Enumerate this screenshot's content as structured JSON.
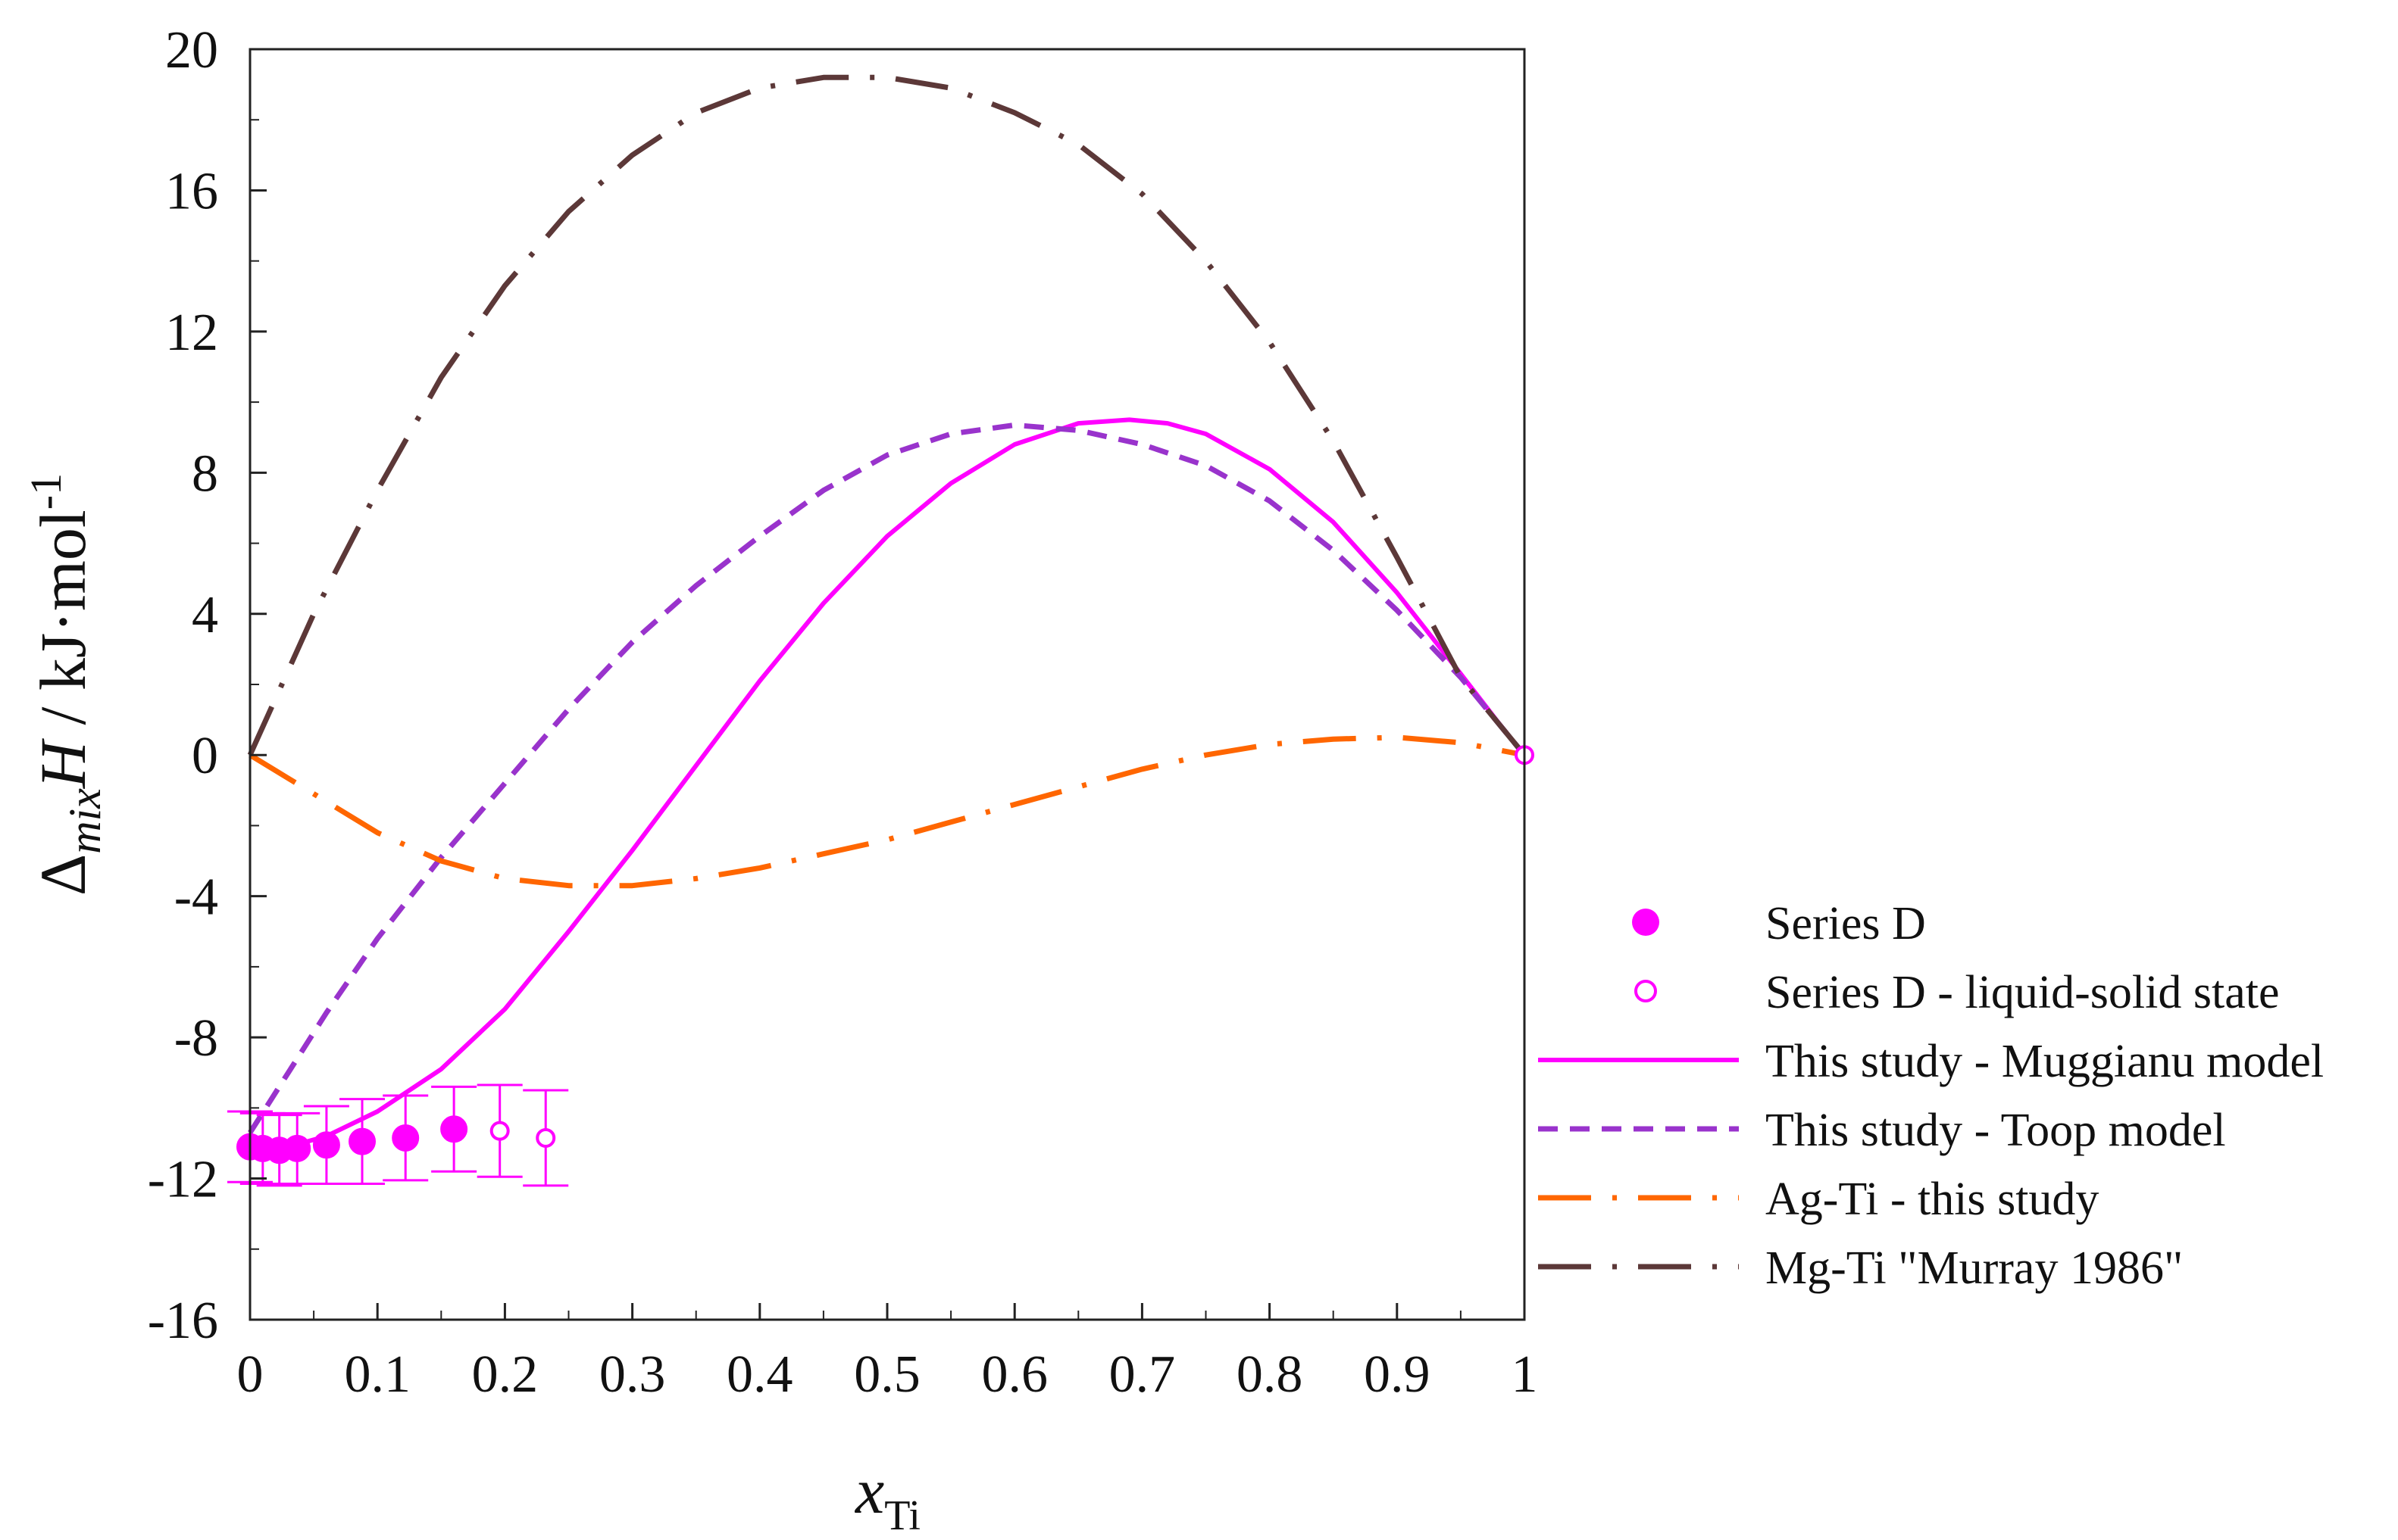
{
  "chart_data": {
    "type": "line",
    "title": "",
    "xlabel_main": "x",
    "xlabel_sub": "Ti",
    "ylabel": "ΔmixH / kJ·mol-1",
    "ylabel_parts": {
      "delta": "Δ",
      "sub": "mix",
      "var": "H",
      "unit": " / kJ·mol",
      "sup": "-1"
    },
    "xlim": [
      0,
      1
    ],
    "ylim": [
      -16,
      20
    ],
    "xticks": [
      0,
      0.1,
      0.2,
      0.3,
      0.4,
      0.5,
      0.6,
      0.7,
      0.8,
      0.9,
      1
    ],
    "xtick_labels": [
      "0",
      "0.1",
      "0.2",
      "0.3",
      "0.4",
      "0.5",
      "0.6",
      "0.7",
      "0.8",
      "0.9",
      "1"
    ],
    "yticks": [
      -16,
      -12,
      -8,
      -4,
      0,
      4,
      8,
      12,
      16,
      20
    ],
    "ytick_labels": [
      "-16",
      "-12",
      "-8",
      "-4",
      "0",
      "4",
      "8",
      "12",
      "16",
      "20"
    ],
    "grid": false,
    "legend_position": "right-bottom outside",
    "series": [
      {
        "name": "Series D",
        "kind": "scatter-filled",
        "color": "#ff00ff",
        "x": [
          0.0,
          0.01,
          0.023,
          0.037,
          0.06,
          0.088,
          0.122,
          0.16
        ],
        "y": [
          -11.1,
          -11.15,
          -11.2,
          -11.15,
          -11.05,
          -10.95,
          -10.85,
          -10.6
        ],
        "err": [
          1.0,
          1.0,
          1.0,
          1.0,
          1.1,
          1.2,
          1.2,
          1.2
        ]
      },
      {
        "name": "Series D - liquid-solid state",
        "kind": "scatter-open",
        "color": "#ff00ff",
        "x": [
          0.196,
          0.232,
          1.0
        ],
        "y": [
          -10.65,
          -10.85,
          0.0
        ],
        "err": [
          1.3,
          1.35,
          0
        ]
      },
      {
        "name": "This study - Muggianu model",
        "kind": "line-solid",
        "color": "#ff00ff",
        "x": [
          0,
          0.03,
          0.06,
          0.1,
          0.15,
          0.2,
          0.25,
          0.3,
          0.35,
          0.4,
          0.45,
          0.5,
          0.55,
          0.6,
          0.65,
          0.69,
          0.72,
          0.75,
          0.8,
          0.85,
          0.9,
          0.95,
          0.98,
          1.0
        ],
        "y": [
          -11.0,
          -11.1,
          -10.8,
          -10.1,
          -8.9,
          -7.2,
          -5.0,
          -2.7,
          -0.3,
          2.1,
          4.3,
          6.2,
          7.7,
          8.8,
          9.4,
          9.5,
          9.4,
          9.1,
          8.1,
          6.6,
          4.6,
          2.3,
          0.9,
          0.0
        ]
      },
      {
        "name": "This study - Toop model",
        "kind": "line-dashed",
        "color": "#9933cc",
        "x": [
          0,
          0.03,
          0.06,
          0.1,
          0.15,
          0.2,
          0.25,
          0.3,
          0.35,
          0.4,
          0.45,
          0.5,
          0.55,
          0.6,
          0.65,
          0.7,
          0.75,
          0.8,
          0.85,
          0.9,
          0.95,
          1.0
        ],
        "y": [
          -10.7,
          -9.0,
          -7.3,
          -5.2,
          -2.9,
          -0.8,
          1.3,
          3.2,
          4.8,
          6.2,
          7.5,
          8.5,
          9.1,
          9.35,
          9.2,
          8.8,
          8.2,
          7.2,
          5.8,
          4.1,
          2.2,
          0.0
        ]
      },
      {
        "name": "Ag-Ti - this study",
        "kind": "line-dashdot",
        "color": "#ff6600",
        "x": [
          0,
          0.05,
          0.1,
          0.15,
          0.2,
          0.25,
          0.3,
          0.35,
          0.4,
          0.45,
          0.5,
          0.55,
          0.6,
          0.65,
          0.7,
          0.75,
          0.8,
          0.85,
          0.9,
          0.95,
          1.0
        ],
        "y": [
          0.0,
          -1.1,
          -2.2,
          -3.0,
          -3.5,
          -3.7,
          -3.7,
          -3.5,
          -3.2,
          -2.8,
          -2.4,
          -1.9,
          -1.4,
          -0.9,
          -0.4,
          0.0,
          0.3,
          0.45,
          0.5,
          0.35,
          0.0
        ]
      },
      {
        "name": "Mg-Ti \"Murray 1986\"",
        "kind": "line-dashdot",
        "color": "#5c3838",
        "x": [
          0,
          0.05,
          0.1,
          0.15,
          0.2,
          0.25,
          0.3,
          0.35,
          0.4,
          0.45,
          0.5,
          0.55,
          0.6,
          0.65,
          0.7,
          0.75,
          0.8,
          0.85,
          0.9,
          0.95,
          1.0
        ],
        "y": [
          0.0,
          4.0,
          7.5,
          10.7,
          13.3,
          15.4,
          17.0,
          18.2,
          18.9,
          19.2,
          19.2,
          18.9,
          18.2,
          17.3,
          15.9,
          14.0,
          11.7,
          8.9,
          5.6,
          2.2,
          0.0
        ]
      }
    ]
  }
}
